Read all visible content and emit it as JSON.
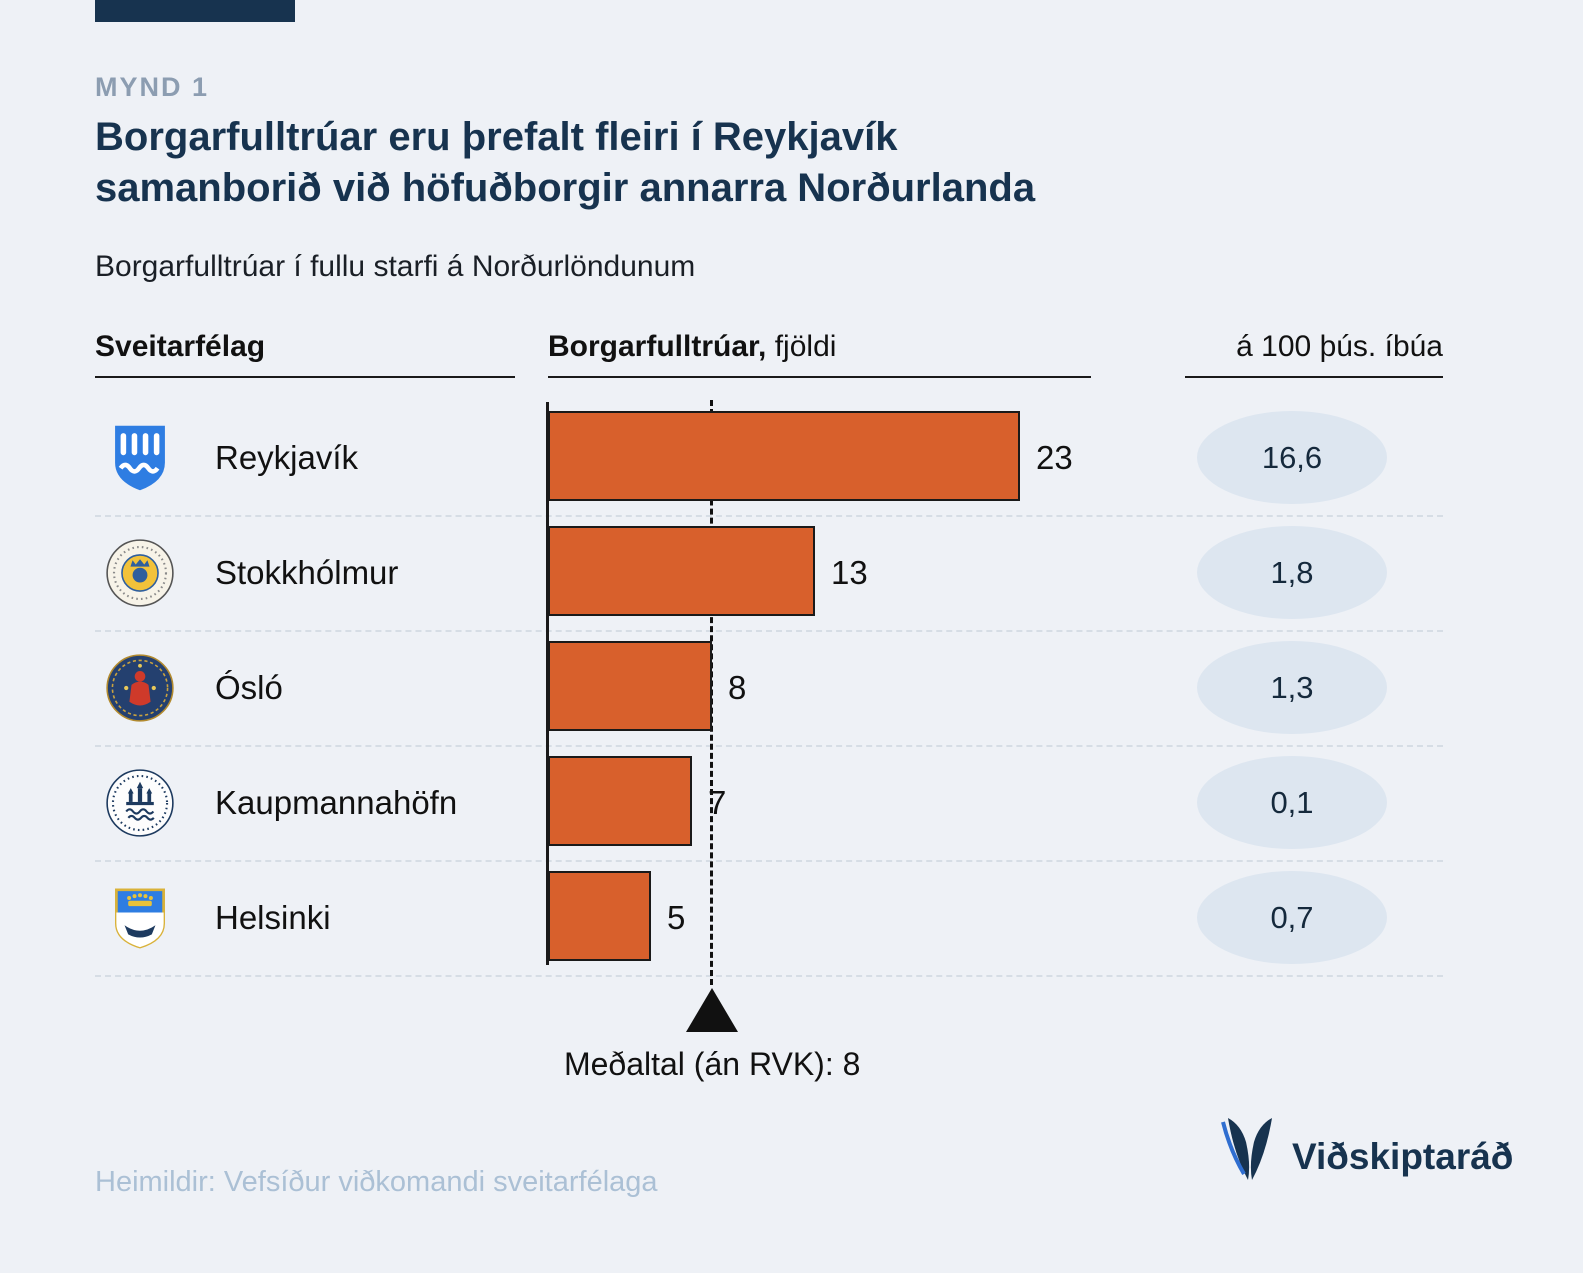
{
  "header": {
    "figure_label": "MYND 1",
    "title_line1": "Borgarfulltrúar eru þrefalt fleiri í Reykjavík",
    "title_line2": "samanborið við höfuðborgir annarra Norðurlanda",
    "subtitle": "Borgarfulltrúar í fullu starfi á Norðurlöndunum"
  },
  "table": {
    "col_municipality": "Sveitarfélag",
    "col_count_bold": "Borgarfulltrúar,",
    "col_count_rest": "fjöldi",
    "col_per_capita": "á 100 þús. íbúa"
  },
  "chart_data": {
    "type": "bar",
    "orientation": "horizontal",
    "title": "Borgarfulltrúar í fullu starfi á Norðurlöndunum",
    "categories": [
      "Reykjavík",
      "Stokkhólmur",
      "Ósló",
      "Kaupmannahöfn",
      "Helsinki"
    ],
    "values": [
      23,
      13,
      8,
      7,
      5
    ],
    "per_100k_labels": [
      "16,6",
      "1,8",
      "1,3",
      "0,1",
      "0,7"
    ],
    "xlim": [
      0,
      23
    ],
    "grid": "dashed-row-separators",
    "average": {
      "value": 8,
      "label": "Meðaltal (án RVK): 8"
    },
    "icons": [
      "reykjavik-coat-of-arms",
      "stockholm-city-seal",
      "oslo-city-seal",
      "copenhagen-city-seal",
      "helsinki-coat-of-arms"
    ],
    "bar_color": "#d8602c"
  },
  "footer": {
    "source": "Heimildir: Vefsíður viðkomandi sveitarfélaga",
    "brand": "Viðskiptaráð"
  },
  "colors": {
    "background": "#eef1f6",
    "navy": "#17334f",
    "orange": "#d8602c",
    "badge_fill": "#dde6f0",
    "muted_label": "#8c9db1",
    "source_text": "#abc0d5"
  }
}
